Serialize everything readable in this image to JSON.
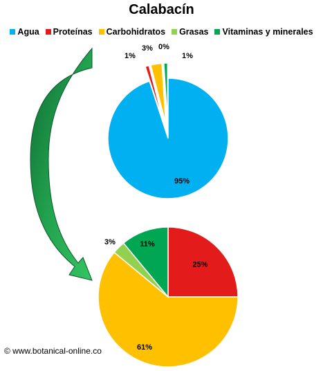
{
  "title": "Calabacín",
  "copyright": "© www.botanical-online.co",
  "legend": [
    {
      "label": "Agua",
      "color": "#00b0f0"
    },
    {
      "label": "Proteínas",
      "color": "#e31b1b"
    },
    {
      "label": "Carbohidratos",
      "color": "#ffc000"
    },
    {
      "label": "Grasas",
      "color": "#92d050"
    },
    {
      "label": "Vitaminas y minerales",
      "color": "#00a651"
    }
  ],
  "chart_data": [
    {
      "type": "pie",
      "title": "Calabacín",
      "categories": [
        "Agua",
        "Proteínas",
        "Carbohidratos",
        "Grasas",
        "Vitaminas y minerales"
      ],
      "values": [
        95,
        1,
        3,
        0,
        1
      ],
      "labels": [
        "95%",
        "1%",
        "3%",
        "0%",
        "1%"
      ],
      "colors": [
        "#00b0f0",
        "#e31b1b",
        "#ffc000",
        "#92d050",
        "#00a651"
      ],
      "exploded": [
        "Proteínas",
        "Carbohidratos",
        "Grasas",
        "Vitaminas y minerales"
      ],
      "legend": "top"
    },
    {
      "type": "pie",
      "categories": [
        "Proteínas",
        "Carbohidratos",
        "Grasas",
        "Vitaminas y minerales"
      ],
      "values": [
        25,
        61,
        3,
        11
      ],
      "labels": [
        "25%",
        "61%",
        "3%",
        "11%"
      ],
      "colors": [
        "#e31b1b",
        "#ffc000",
        "#92d050",
        "#00a651"
      ]
    }
  ],
  "arrow_color": "#1e9e4a"
}
